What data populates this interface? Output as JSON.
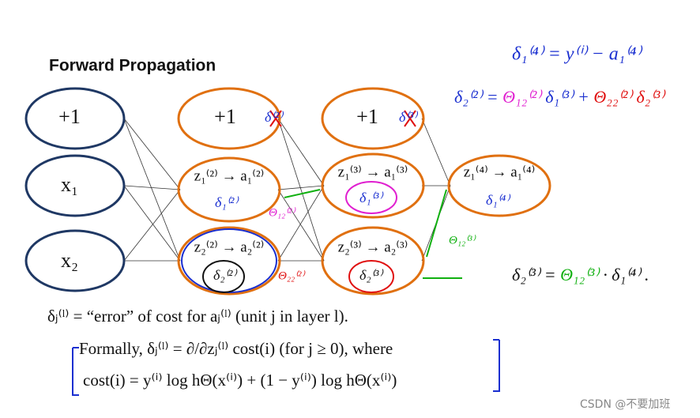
{
  "title": "Forward Propagation",
  "nodes": [
    {
      "label": "+1"
    },
    {
      "label": "x₁"
    },
    {
      "label": "x₂"
    },
    {
      "label": "+1"
    },
    {
      "label": "z₁⁽²⁾ → a₁⁽²⁾"
    },
    {
      "label": "z₂⁽²⁾ → a₂⁽²⁾"
    },
    {
      "label": "+1"
    },
    {
      "label": "z₁⁽³⁾ → a₁⁽³⁾"
    },
    {
      "label": "z₂⁽³⁾ → a₂⁽³⁾"
    },
    {
      "label": "z₁⁽⁴⁾ → a₁⁽⁴⁾"
    }
  ],
  "annotations": {
    "node_deltas": [
      "δ⁽²⁾",
      "δ₁⁽²⁾",
      "δ₂⁽²⁾",
      "δ⁽³⁾",
      "δ₁⁽³⁾",
      "δ₂⁽³⁾",
      "δ₁⁽⁴⁾"
    ],
    "weights": [
      "Θ₁₂⁽²⁾",
      "Θ₂₂⁽²⁾",
      "Θ₁₂⁽³⁾"
    ],
    "equation1": "δ₁⁽⁴⁾ = y⁽ⁱ⁾ − a₁⁽⁴⁾",
    "equation2": [
      "δ₂⁽²⁾ =",
      "Θ₁₂⁽²⁾",
      "δ₁⁽³⁾ +",
      "Θ₂₂⁽²⁾",
      "δ₂⁽³⁾"
    ],
    "equation3": [
      "δ₂⁽³⁾ =",
      "Θ₁₂⁽³⁾",
      "· δ₁⁽⁴⁾ ."
    ]
  },
  "definition": {
    "line1": "δⱼ⁽ˡ⁾ = “error” of cost for aⱼ⁽ˡ⁾ (unit j in layer l).",
    "line2": "Formally, δⱼ⁽ˡ⁾ = ∂/∂zⱼ⁽ˡ⁾ cost(i)     (for j ≥ 0), where",
    "line3": "cost(i) = y⁽ⁱ⁾ log hΘ(x⁽ⁱ⁾) + (1 − y⁽ⁱ⁾) log hΘ(x⁽ⁱ⁾)"
  },
  "watermark": "CSDN @不要加班"
}
